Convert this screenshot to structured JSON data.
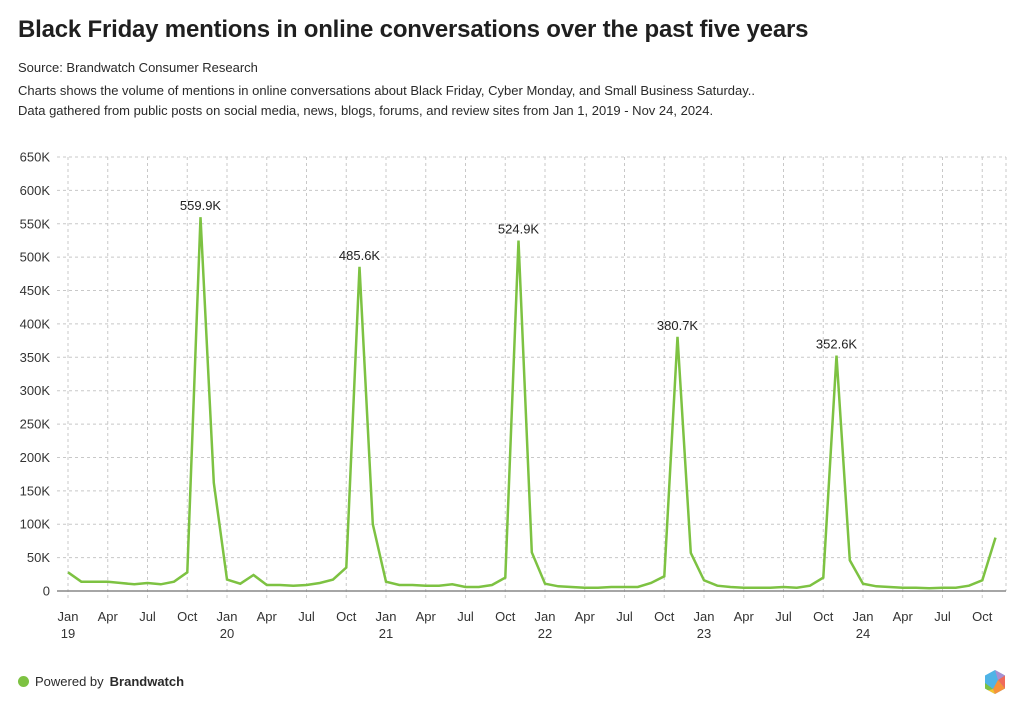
{
  "header": {
    "title": "Black Friday mentions in online conversations over the past five years",
    "source": "Source: Brandwatch Consumer Research",
    "description_line1": "Charts shows the volume of mentions in online conversations about Black Friday, Cyber Monday, and Small Business Saturday..",
    "description_line2": "Data gathered from public posts on social media, news, blogs, forums, and review sites from Jan 1, 2019 - Nov 24, 2024."
  },
  "footer": {
    "powered_prefix": "Powered by",
    "brand": "Brandwatch",
    "logo_icon": "brandwatch-hexagon-logo-icon"
  },
  "colors": {
    "line": "#7dc242",
    "grid": "#c8c8c8",
    "axis": "#888888",
    "text": "#333333",
    "dot": "#7dc242"
  },
  "chart_data": {
    "type": "line",
    "title": "Black Friday mentions in online conversations over the past five years",
    "xlabel": "",
    "ylabel": "",
    "ylim": [
      0,
      650000
    ],
    "grid": true,
    "y_ticks": [
      0,
      50000,
      100000,
      150000,
      200000,
      250000,
      300000,
      350000,
      400000,
      450000,
      500000,
      550000,
      600000,
      650000
    ],
    "y_tick_labels": [
      "0",
      "50K",
      "100K",
      "150K",
      "200K",
      "250K",
      "300K",
      "350K",
      "400K",
      "450K",
      "500K",
      "550K",
      "600K",
      "650K"
    ],
    "x_ticks": [
      {
        "index": 0,
        "label": "Jan",
        "sub": "19"
      },
      {
        "index": 3,
        "label": "Apr",
        "sub": ""
      },
      {
        "index": 6,
        "label": "Jul",
        "sub": ""
      },
      {
        "index": 9,
        "label": "Oct",
        "sub": ""
      },
      {
        "index": 12,
        "label": "Jan",
        "sub": "20"
      },
      {
        "index": 15,
        "label": "Apr",
        "sub": ""
      },
      {
        "index": 18,
        "label": "Jul",
        "sub": ""
      },
      {
        "index": 21,
        "label": "Oct",
        "sub": ""
      },
      {
        "index": 24,
        "label": "Jan",
        "sub": "21"
      },
      {
        "index": 27,
        "label": "Apr",
        "sub": ""
      },
      {
        "index": 30,
        "label": "Jul",
        "sub": ""
      },
      {
        "index": 33,
        "label": "Oct",
        "sub": ""
      },
      {
        "index": 36,
        "label": "Jan",
        "sub": "22"
      },
      {
        "index": 39,
        "label": "Apr",
        "sub": ""
      },
      {
        "index": 42,
        "label": "Jul",
        "sub": ""
      },
      {
        "index": 45,
        "label": "Oct",
        "sub": ""
      },
      {
        "index": 48,
        "label": "Jan",
        "sub": "23"
      },
      {
        "index": 51,
        "label": "Apr",
        "sub": ""
      },
      {
        "index": 54,
        "label": "Jul",
        "sub": ""
      },
      {
        "index": 57,
        "label": "Oct",
        "sub": ""
      },
      {
        "index": 60,
        "label": "Jan",
        "sub": "24"
      },
      {
        "index": 63,
        "label": "Apr",
        "sub": ""
      },
      {
        "index": 66,
        "label": "Jul",
        "sub": ""
      },
      {
        "index": 69,
        "label": "Oct",
        "sub": ""
      }
    ],
    "x_domain_months": 72,
    "series": [
      {
        "name": "Mentions",
        "x_start": "Jan 2019",
        "x_interval": "month",
        "values": [
          28000,
          14000,
          14000,
          14000,
          12000,
          10000,
          12000,
          10000,
          14000,
          28000,
          559900,
          162000,
          17000,
          11000,
          24000,
          9000,
          9000,
          8000,
          9000,
          12000,
          17000,
          35000,
          485600,
          100000,
          14000,
          9000,
          9000,
          8000,
          8000,
          10000,
          6000,
          6000,
          9000,
          20000,
          524900,
          58000,
          11000,
          7000,
          6000,
          5000,
          5000,
          6000,
          6000,
          6000,
          12000,
          22000,
          380700,
          57000,
          16000,
          8000,
          6000,
          5000,
          5000,
          5000,
          6000,
          5000,
          8000,
          20000,
          352600,
          46000,
          11000,
          7000,
          6000,
          5000,
          5000,
          4000,
          5000,
          5000,
          8000,
          16000,
          80000
        ]
      }
    ],
    "annotations": [
      {
        "index": 10,
        "label": "559.9K"
      },
      {
        "index": 22,
        "label": "485.6K"
      },
      {
        "index": 34,
        "label": "524.9K"
      },
      {
        "index": 46,
        "label": "380.7K"
      },
      {
        "index": 58,
        "label": "352.6K"
      }
    ]
  }
}
